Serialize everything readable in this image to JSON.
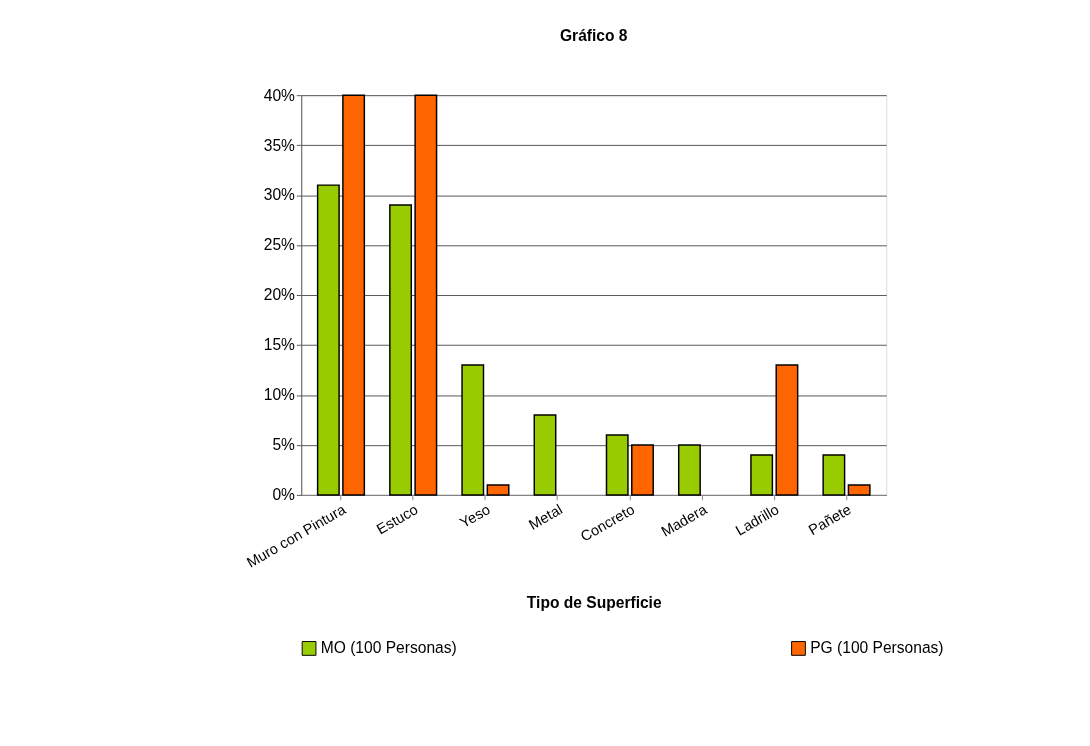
{
  "chart_data": {
    "type": "bar",
    "title": "Gráfico 8",
    "xlabel": "Tipo de Superficie",
    "categories": [
      "Muro con Pintura",
      "Estuco",
      "Yeso",
      "Metal",
      "Concreto",
      "Madera",
      "Ladrillo",
      "Pañete"
    ],
    "series": [
      {
        "name": "MO (100 Personas)",
        "color": "#99cc00",
        "values": [
          31,
          29,
          13,
          8,
          6,
          5,
          4,
          4
        ]
      },
      {
        "name": "PG (100 Personas)",
        "color": "#ff6600",
        "values": [
          40,
          40,
          1,
          null,
          5,
          null,
          13,
          1
        ]
      }
    ],
    "ylim": [
      0,
      40
    ],
    "yticks": [
      {
        "value": 0,
        "label": "0%"
      },
      {
        "value": 5,
        "label": "5%"
      },
      {
        "value": 10,
        "label": "10%"
      },
      {
        "value": 15,
        "label": "15%"
      },
      {
        "value": 20,
        "label": "20%"
      },
      {
        "value": 25,
        "label": "25%"
      },
      {
        "value": 30,
        "label": "30%"
      },
      {
        "value": 35,
        "label": "35%"
      },
      {
        "value": 40,
        "label": "40%"
      }
    ],
    "grid": "y",
    "legend": "bottom"
  }
}
